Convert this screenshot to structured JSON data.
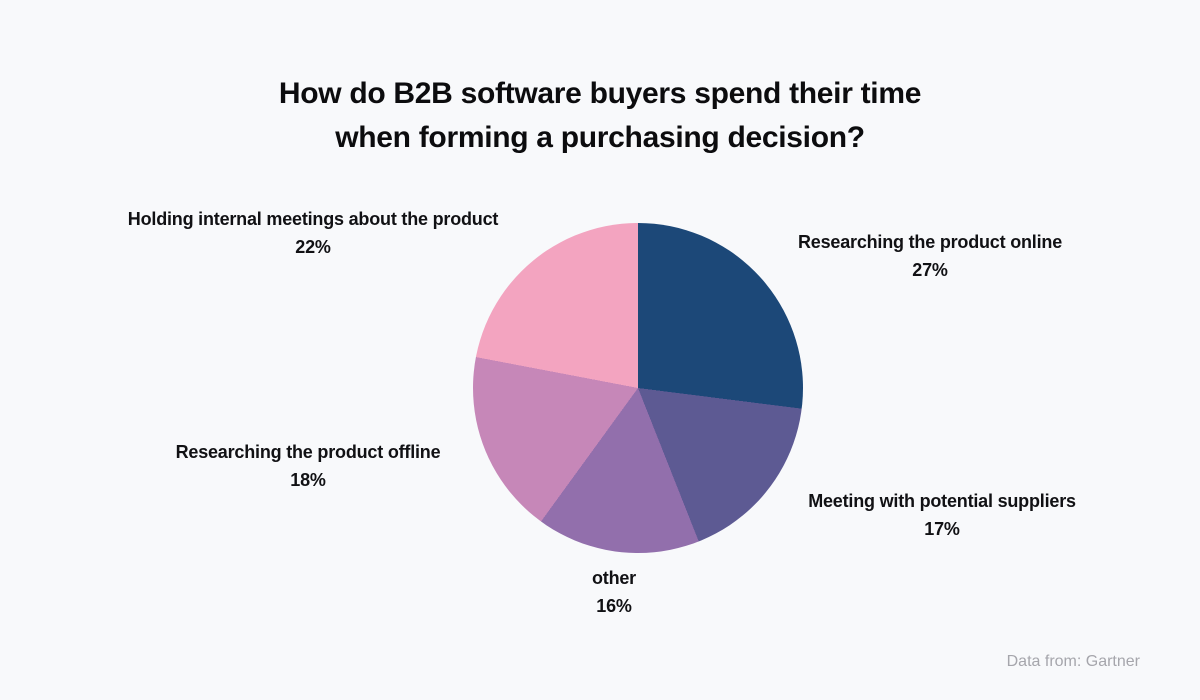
{
  "page": {
    "background": "#f8f9fb"
  },
  "title": {
    "line1": "How do B2B software buyers spend their time",
    "line2": "when forming a purchasing decision?"
  },
  "source": {
    "text": "Data from: Gartner"
  },
  "chart_data": {
    "type": "pie",
    "title": "How do B2B software buyers spend their time when forming a purchasing decision?",
    "start_angle_deg": 0,
    "direction": "clockwise",
    "legend_position": "labels-around-pie",
    "slices": [
      {
        "label": "Researching the product online",
        "value": 27,
        "pct_label": "27%",
        "color": "#1C4878"
      },
      {
        "label": "Meeting with potential suppliers",
        "value": 17,
        "pct_label": "17%",
        "color": "#5D5A93"
      },
      {
        "label": "other",
        "value": 16,
        "pct_label": "16%",
        "color": "#926FAC"
      },
      {
        "label": "Researching the product offline",
        "value": 18,
        "pct_label": "18%",
        "color": "#C687B8"
      },
      {
        "label": "Holding internal meetings about the product",
        "value": 22,
        "pct_label": "22%",
        "color": "#F3A4C0"
      }
    ]
  }
}
